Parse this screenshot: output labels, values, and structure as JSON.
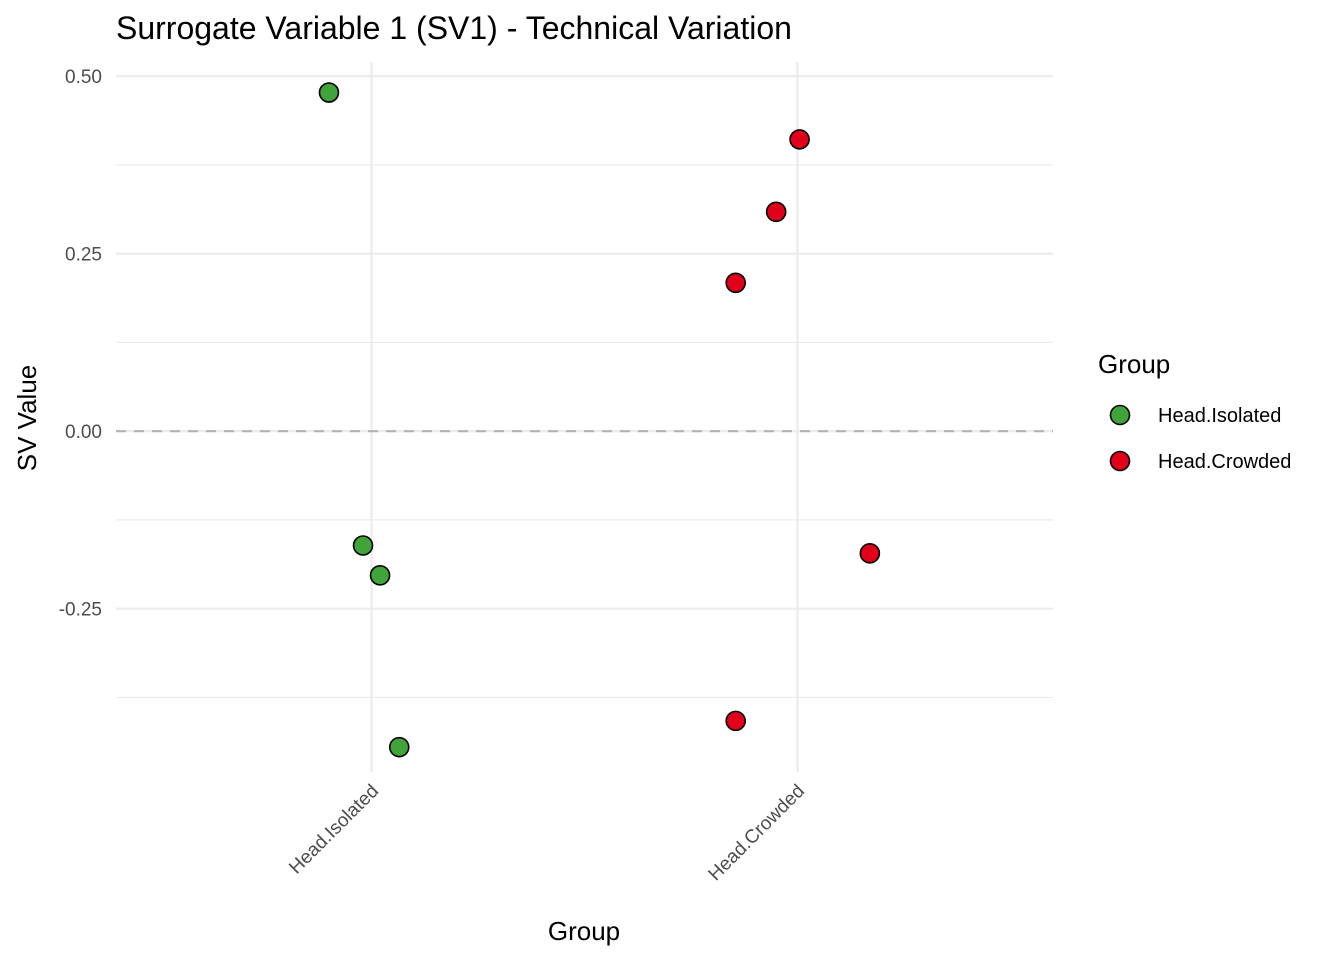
{
  "chart_data": {
    "type": "scatter",
    "title": "Surrogate Variable 1 (SV1) - Technical Variation",
    "xlabel": "Group",
    "ylabel": "SV Value",
    "categories": [
      "Head.Isolated",
      "Head.Crowded"
    ],
    "ylim": [
      -0.48,
      0.52
    ],
    "yticks": [
      -0.25,
      0.0,
      0.25,
      0.5
    ],
    "ytick_labels": [
      "-0.25",
      "0.00",
      "0.25",
      "0.50"
    ],
    "reference_line": {
      "y": 0.0,
      "style": "dashed"
    },
    "grid": true,
    "legend": {
      "title": "Group",
      "position": "right"
    },
    "series": [
      {
        "name": "Head.Isolated",
        "color": "#41A43B",
        "points": [
          {
            "category": "Head.Isolated",
            "jitter": -0.1,
            "y": 0.477
          },
          {
            "category": "Head.Isolated",
            "jitter": -0.02,
            "y": -0.161
          },
          {
            "category": "Head.Isolated",
            "jitter": 0.02,
            "y": -0.203
          },
          {
            "category": "Head.Isolated",
            "jitter": 0.065,
            "y": -0.445
          }
        ]
      },
      {
        "name": "Head.Crowded",
        "color": "#E0001B",
        "points": [
          {
            "category": "Head.Crowded",
            "jitter": 0.005,
            "y": 0.411
          },
          {
            "category": "Head.Crowded",
            "jitter": -0.05,
            "y": 0.309
          },
          {
            "category": "Head.Crowded",
            "jitter": -0.145,
            "y": 0.209
          },
          {
            "category": "Head.Crowded",
            "jitter": 0.17,
            "y": -0.172
          },
          {
            "category": "Head.Crowded",
            "jitter": -0.145,
            "y": -0.408
          }
        ]
      }
    ]
  }
}
